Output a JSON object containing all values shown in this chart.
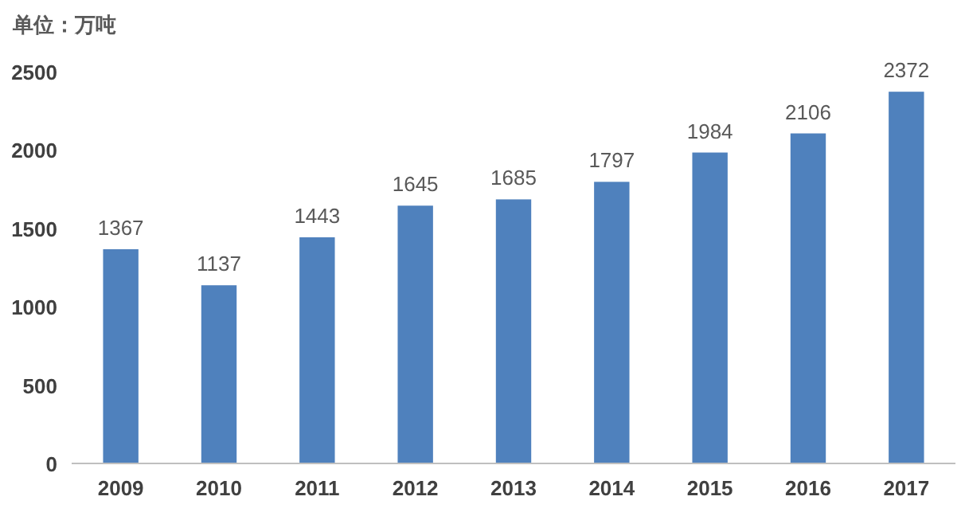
{
  "chart_data": {
    "type": "bar",
    "ylabel": "单位：万吨",
    "categories": [
      "2009",
      "2010",
      "2011",
      "2012",
      "2013",
      "2014",
      "2015",
      "2016",
      "2017"
    ],
    "values": [
      1367,
      1137,
      1443,
      1645,
      1685,
      1797,
      1984,
      2106,
      2372
    ],
    "color": "#4f81bd",
    "ylim": [
      0,
      2500
    ],
    "yticks": [
      0,
      500,
      1000,
      1500,
      2000,
      2500
    ],
    "data_labels": true
  }
}
